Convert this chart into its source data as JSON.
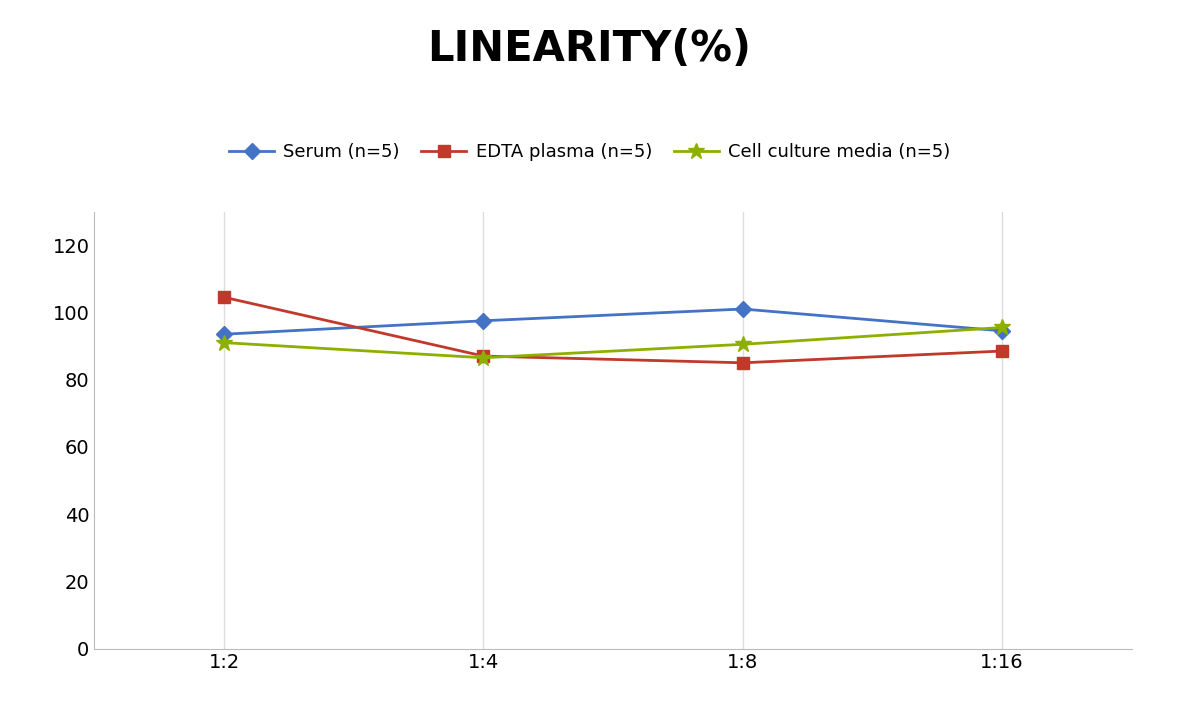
{
  "title": "LINEARITY(%)",
  "title_fontsize": 30,
  "title_fontweight": "bold",
  "x_labels": [
    "1:2",
    "1:4",
    "1:8",
    "1:16"
  ],
  "x_positions": [
    0,
    1,
    2,
    3
  ],
  "serum": {
    "label": "Serum (n=5)",
    "values": [
      93.5,
      97.5,
      101.0,
      94.5
    ],
    "color": "#4472C4",
    "marker": "D",
    "markersize": 8
  },
  "edta": {
    "label": "EDTA plasma (n=5)",
    "values": [
      104.5,
      87.0,
      85.0,
      88.5
    ],
    "color": "#C0392B",
    "marker": "s",
    "markersize": 8
  },
  "cell": {
    "label": "Cell culture media (n=5)",
    "values": [
      91.0,
      86.5,
      90.5,
      95.5
    ],
    "color": "#8DB000",
    "marker": "*",
    "markersize": 12
  },
  "ylim": [
    0,
    130
  ],
  "yticks": [
    0,
    20,
    40,
    60,
    80,
    100,
    120
  ],
  "grid_color": "#DDDDDD",
  "background_color": "#FFFFFF"
}
